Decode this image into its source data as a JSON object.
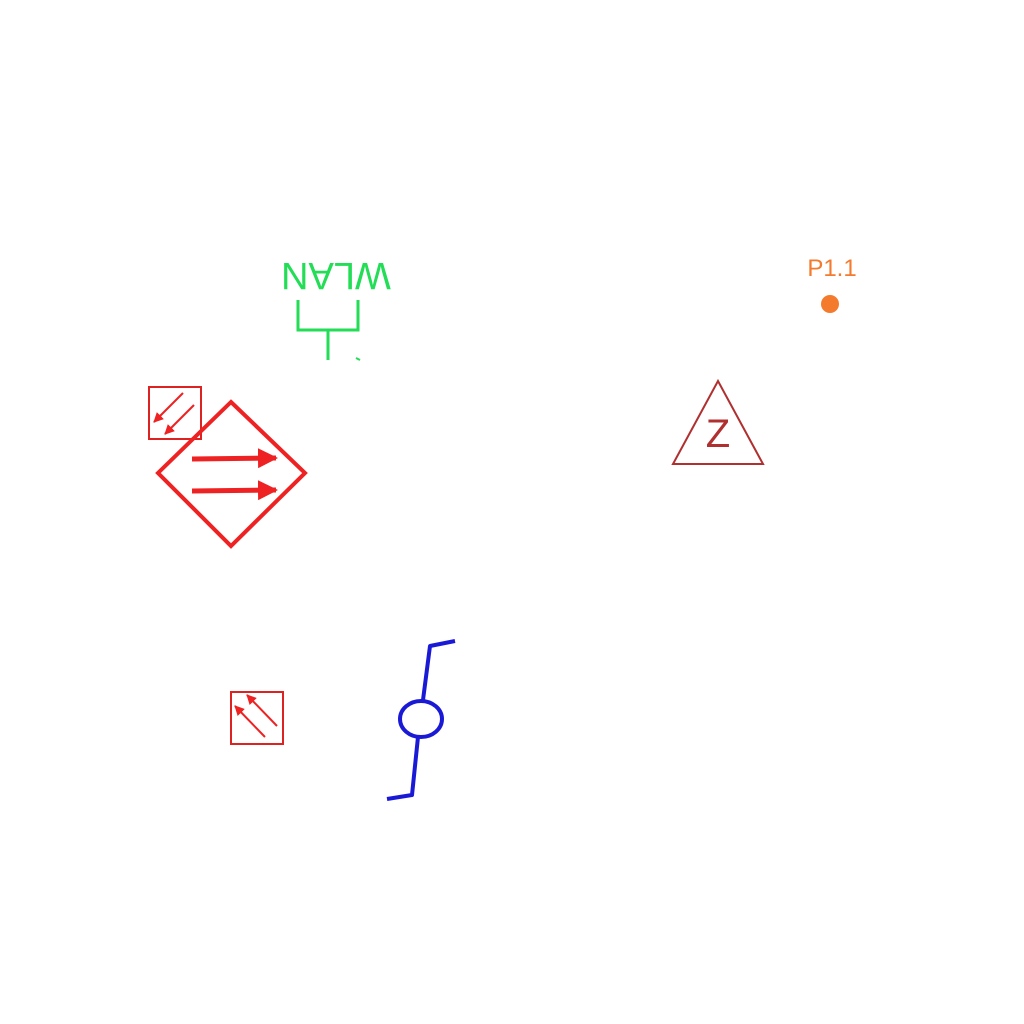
{
  "colors": {
    "background": "#ffffff",
    "wlan": "#22dd55",
    "fire_red": "#ee2222",
    "outline_red": "#dd2222",
    "triangle": "#b03030",
    "point": "#f47a2e",
    "blue": "#1a1ad6"
  },
  "symbols": {
    "wlan_antenna": {
      "icon": "wlan-antenna-icon",
      "label": "WLAN",
      "orientation": "rotated-180"
    },
    "small_box_top": {
      "icon": "diagonal-arrows-down-left-icon"
    },
    "diamond": {
      "icon": "diamond-double-arrow-right-icon"
    },
    "small_box_bottom": {
      "icon": "diagonal-arrows-up-left-icon"
    },
    "warning_triangle": {
      "icon": "triangle-z-icon",
      "letter": "Z"
    },
    "point_marker": {
      "icon": "point-dot-icon",
      "label": "P1.1"
    },
    "blue_symbol": {
      "icon": "s-curve-circle-icon"
    }
  }
}
